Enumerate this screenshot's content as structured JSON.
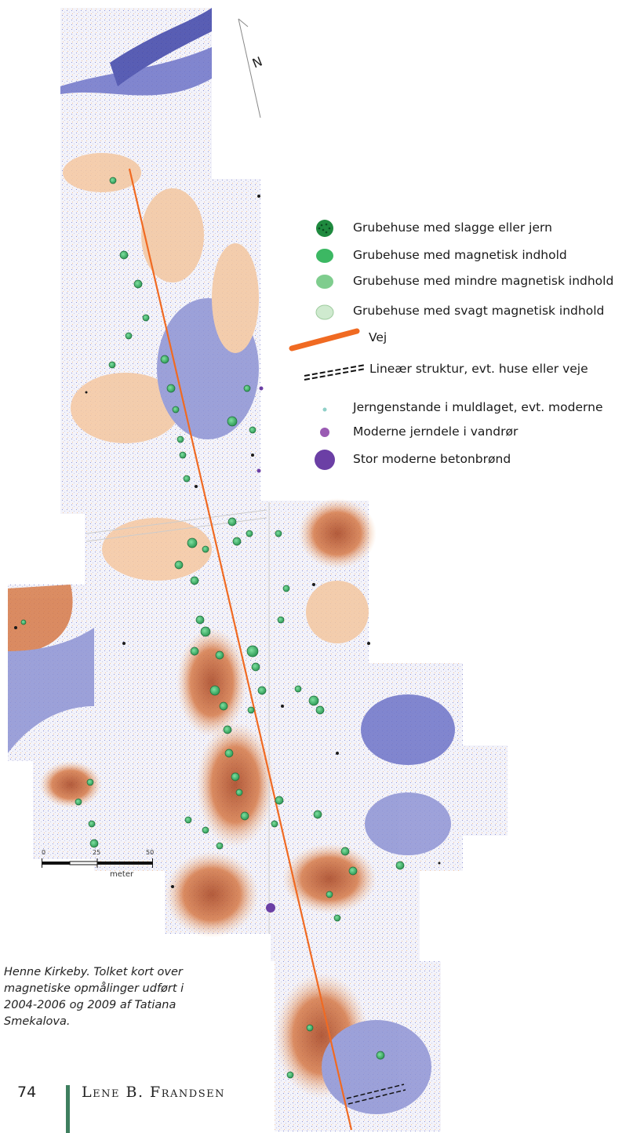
{
  "map": {
    "north_label": "N",
    "scale": {
      "ticks": [
        "0",
        "25",
        "50"
      ],
      "unit": "meter"
    },
    "colors": {
      "background": "#ffffff",
      "survey_light_orange": "#f4c7a0",
      "survey_dark_orange": "#c65a2a",
      "survey_blue": "#8e93d4",
      "survey_dark_blue": "#3f45a8",
      "road": "#f06a22",
      "pit_house_green": "#3fbf6f",
      "anomaly_black": "#1a1a1a"
    }
  },
  "legend": {
    "items": [
      {
        "label": "Grubehuse med slagge eller jern",
        "symbol": "dotted-dark-green-circle-icon",
        "color": "#1f8a3f"
      },
      {
        "label": "Grubehuse med magnetisk indhold",
        "symbol": "green-circle-icon",
        "color": "#3cb863"
      },
      {
        "label": "Grubehuse med mindre magnetisk indhold",
        "symbol": "mid-green-circle-icon",
        "color": "#7fcd8e"
      },
      {
        "label": "Grubehuse med svagt magnetisk indhold",
        "symbol": "pale-green-circle-icon",
        "color": "#cfeacf"
      },
      {
        "label": "Vej",
        "symbol": "orange-line-icon",
        "color": "#f06a22"
      },
      {
        "label": "Lineær struktur, evt. huse eller veje",
        "symbol": "dashed-double-line-icon",
        "color": "#111111"
      },
      {
        "label": "Jerngenstande i muldlaget, evt. moderne",
        "symbol": "small-teal-dot-icon",
        "color": "#8fd0c8"
      },
      {
        "label": "Moderne jerndele i vandrør",
        "symbol": "purple-dot-icon",
        "color": "#9a5bb3"
      },
      {
        "label": "Stor moderne betonbrønd",
        "symbol": "large-purple-circle-icon",
        "color": "#6b3fa5"
      }
    ]
  },
  "caption": "Henne Kirkeby. Tolket kort over magnetiske opmålinger udført i 2004-2006 og 2009 af Tatiana Smekalova.",
  "footer": {
    "page_number": "74",
    "author": "Lene B. Frandsen"
  }
}
